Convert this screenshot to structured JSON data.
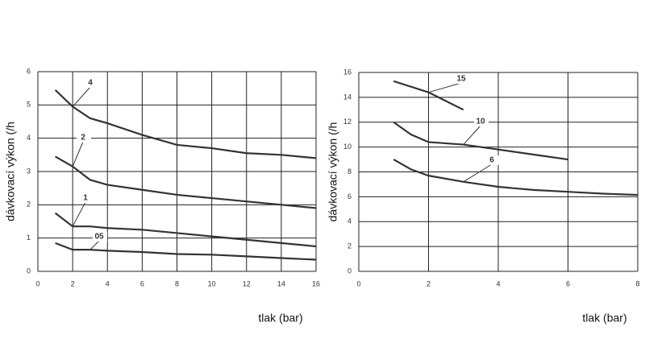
{
  "chart_data": [
    {
      "type": "line",
      "ylabel": "dávkovací výkon (/h",
      "xlabel": "tlak (bar)",
      "xlim": [
        0,
        16
      ],
      "xticks": [
        0,
        2,
        4,
        6,
        8,
        10,
        12,
        14,
        16
      ],
      "ylim": [
        0,
        6
      ],
      "yticks": [
        0,
        1,
        2,
        3,
        4,
        5,
        6
      ],
      "grid": true,
      "series": [
        {
          "name": "4",
          "color": "#333333",
          "x": [
            1,
            2,
            3,
            4,
            6,
            8,
            10,
            12,
            14,
            16
          ],
          "values": [
            5.45,
            4.95,
            4.6,
            4.45,
            4.1,
            3.8,
            3.7,
            3.55,
            3.5,
            3.4
          ]
        },
        {
          "name": "2",
          "color": "#333333",
          "x": [
            1,
            2,
            3,
            4,
            6,
            8,
            10,
            12,
            14,
            16
          ],
          "values": [
            3.45,
            3.15,
            2.75,
            2.6,
            2.45,
            2.3,
            2.2,
            2.1,
            2.0,
            1.9
          ]
        },
        {
          "name": "1",
          "color": "#333333",
          "x": [
            1,
            2,
            3,
            4,
            6,
            8,
            10,
            12,
            14,
            16
          ],
          "values": [
            1.75,
            1.35,
            1.35,
            1.3,
            1.25,
            1.15,
            1.05,
            0.95,
            0.85,
            0.75
          ]
        },
        {
          "name": "05",
          "color": "#333333",
          "x": [
            1,
            2,
            3,
            4,
            6,
            8,
            10,
            12,
            14,
            16
          ],
          "values": [
            0.85,
            0.65,
            0.65,
            0.62,
            0.58,
            0.52,
            0.5,
            0.45,
            0.4,
            0.35
          ]
        }
      ]
    },
    {
      "type": "line",
      "ylabel": "dávkovací výkon (/h",
      "xlabel": "tlak (bar)",
      "xlim": [
        0,
        8
      ],
      "xticks": [
        0,
        2,
        4,
        6,
        8
      ],
      "ylim": [
        0,
        16
      ],
      "yticks": [
        0,
        2,
        4,
        6,
        8,
        10,
        12,
        14,
        16
      ],
      "grid": true,
      "series": [
        {
          "name": "15",
          "color": "#333333",
          "x": [
            1,
            2,
            3
          ],
          "values": [
            15.3,
            14.4,
            13.0
          ]
        },
        {
          "name": "10",
          "color": "#333333",
          "x": [
            1,
            1.5,
            2,
            3,
            4,
            5,
            6
          ],
          "values": [
            12,
            11,
            10.4,
            10.2,
            9.8,
            9.4,
            9.0
          ]
        },
        {
          "name": "6",
          "color": "#333333",
          "x": [
            1,
            1.5,
            2,
            3,
            4,
            5,
            6,
            7,
            8
          ],
          "values": [
            9,
            8.2,
            7.7,
            7.2,
            6.8,
            6.55,
            6.4,
            6.25,
            6.15
          ]
        }
      ]
    }
  ]
}
